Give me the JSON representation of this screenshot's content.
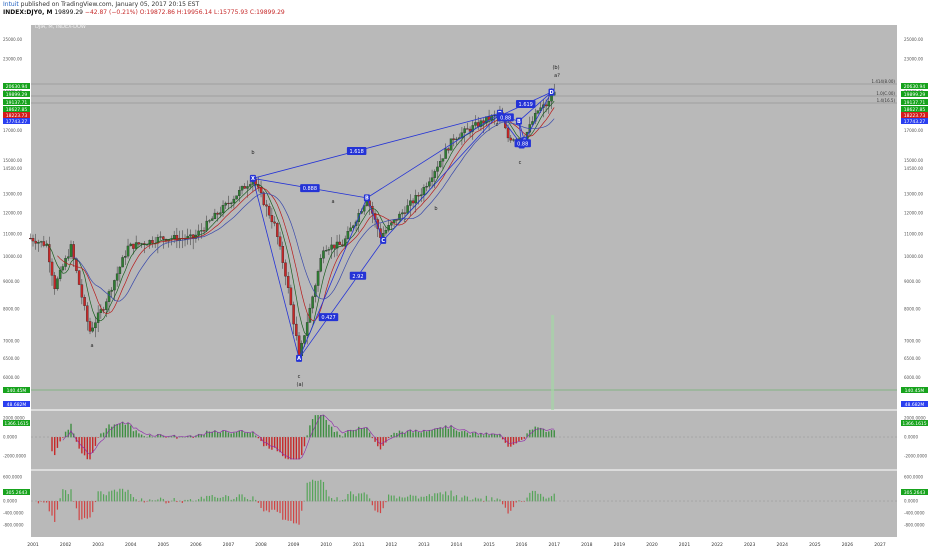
{
  "header": {
    "publisher_user": "Intuit",
    "publisher_text": "published on TradingView.com, January 05, 2017 20:15 EST",
    "symbol": "INDEX:DJY0, M",
    "last": "19899.29",
    "change": "−42.87 (−0.21%)",
    "ohlc": "O:19872.86 H:19956.14 L:15775.93 C:19899.29"
  },
  "pane_legend": "DJIA, M, INDEX-DOW",
  "colors": {
    "panel_bg": "#b9b9b9",
    "up_candle": "#2e7d32",
    "down_candle": "#c62828",
    "harmonic_line": "#2433d6",
    "badge_green": "#17a31d",
    "badge_red": "#d41b1b",
    "badge_blue": "#2a3ff0"
  },
  "chart_data": {
    "type": "candlestick",
    "title": "DJIA, M, INDEX-DOW",
    "x_ticks": [
      "2001",
      "2002",
      "2003",
      "2004",
      "2005",
      "2006",
      "2007",
      "2008",
      "2009",
      "2010",
      "2011",
      "2012",
      "2013",
      "2014",
      "2015",
      "2016",
      "2017",
      "2018",
      "2019",
      "2020",
      "2021",
      "2022",
      "2023",
      "2024",
      "2025",
      "2026",
      "2027"
    ],
    "y_ticks_main": [
      "25000.00",
      "23000.00",
      "20000.00",
      "17000.00",
      "15000.00",
      "14500.00",
      "13000.00",
      "12000.00",
      "11000.00",
      "10000.00",
      "9000.00",
      "8000.00",
      "7000.00",
      "6500.00",
      "6000.00"
    ],
    "ylim_main": [
      5500,
      26000
    ],
    "price_path": [
      [
        "2000-12",
        10800
      ],
      [
        "2001-06",
        10500
      ],
      [
        "2001-09",
        8800
      ],
      [
        "2002-03",
        10400
      ],
      [
        "2002-09",
        7600
      ],
      [
        "2002-10",
        7300
      ],
      [
        "2003-03",
        8100
      ],
      [
        "2003-12",
        10400
      ],
      [
        "2004-12",
        10800
      ],
      [
        "2005-12",
        10800
      ],
      [
        "2006-12",
        12400
      ],
      [
        "2007-10",
        13900
      ],
      [
        "2008-06",
        11400
      ],
      [
        "2008-10",
        9300
      ],
      [
        "2009-02",
        7100
      ],
      [
        "2009-03",
        6500
      ],
      [
        "2009-12",
        10400
      ],
      [
        "2010-07",
        10500
      ],
      [
        "2011-04",
        12800
      ],
      [
        "2011-09",
        10900
      ],
      [
        "2012-12",
        13100
      ],
      [
        "2013-12",
        16500
      ],
      [
        "2014-12",
        17800
      ],
      [
        "2015-05",
        18200
      ],
      [
        "2015-08",
        16500
      ],
      [
        "2016-01",
        16500
      ],
      [
        "2016-02",
        16500
      ],
      [
        "2016-07",
        18500
      ],
      [
        "2016-11",
        19100
      ],
      [
        "2016-12",
        19800
      ],
      [
        "2017-01",
        19900
      ]
    ],
    "indicator_badges": [
      {
        "value": "20630.94",
        "color": "#17a31d"
      },
      {
        "value": "19899.29",
        "color": "#17a31d"
      },
      {
        "value": "19137.71",
        "color": "#17a31d"
      },
      {
        "value": "18627.85",
        "color": "#17a31d"
      },
      {
        "value": "18223.73",
        "color": "#d41b1b"
      },
      {
        "value": "17743.27",
        "color": "#2a3ff0"
      }
    ],
    "volume_badges": [
      {
        "value": "140.45M",
        "color": "#17a31d"
      },
      {
        "value": "48.682M",
        "color": "#2a3ff0"
      }
    ],
    "osc1_badge": "1366.1615",
    "osc1_ticks": [
      "2000.0000",
      "0.0000",
      "-2000.0000"
    ],
    "osc2_badge": "305.2643",
    "osc2_ticks": [
      "600.0000",
      "0.0000",
      "-400.0000",
      "-800.0000"
    ],
    "fib_labels": [
      "1.414(8.00)",
      "1.0(C.00)",
      "1.4(16.5)"
    ],
    "pattern_points": [
      {
        "label": "X",
        "date": "2007-10",
        "value": 13900
      },
      {
        "label": "A",
        "date": "2009-03",
        "value": 6500
      },
      {
        "label": "B",
        "date": "2011-04",
        "value": 12800
      },
      {
        "label": "C",
        "date": "2011-10",
        "value": 10700
      },
      {
        "label": "D",
        "date": "2015-05",
        "value": 18300
      },
      {
        "label": "X",
        "date": "2015-05",
        "value": 18100
      },
      {
        "label": "A",
        "date": "2016-01",
        "value": 16000
      },
      {
        "label": "B",
        "date": "2015-12",
        "value": 17700
      },
      {
        "label": "C",
        "date": "2016-02",
        "value": 16300
      },
      {
        "label": "D",
        "date": "2016-12",
        "value": 20000
      }
    ],
    "ratio_labels": [
      "1.618",
      "2.92",
      "0.888",
      "0.427",
      "1.619",
      "0.88",
      "0.88"
    ],
    "wave_labels": [
      "a",
      "b",
      "(a)",
      "c",
      "a",
      "(b)",
      "a?",
      "c",
      "b",
      "c",
      "c"
    ]
  }
}
